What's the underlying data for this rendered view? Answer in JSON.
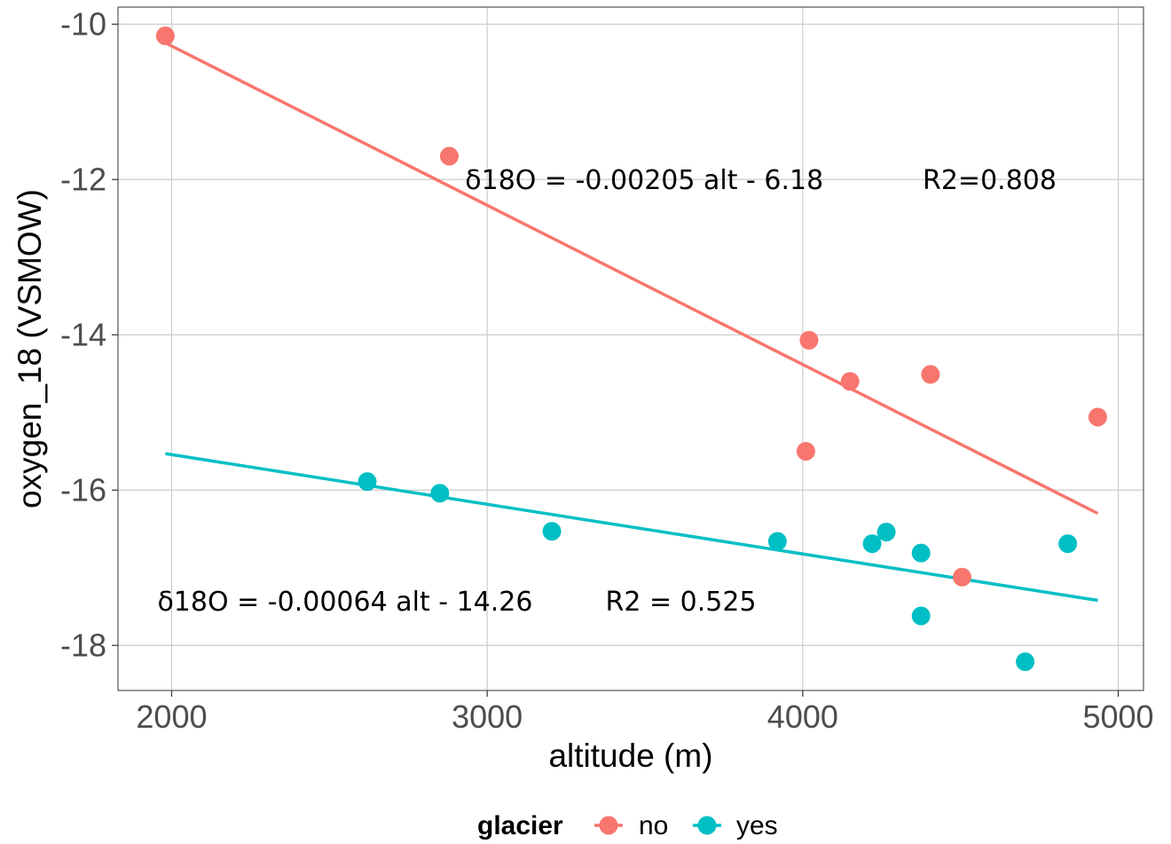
{
  "chart_data": {
    "type": "scatter",
    "xlabel": "altitude (m)",
    "ylabel": "oxygen_18 (VSMOW)",
    "xlim": [
      1830,
      5080
    ],
    "ylim": [
      -18.58,
      -9.78
    ],
    "x_ticks": [
      2000,
      3000,
      4000,
      5000
    ],
    "x_tick_labels": [
      "2000",
      "3000",
      "4000",
      "5000"
    ],
    "y_ticks": [
      -18,
      -16,
      -14,
      -12,
      -10
    ],
    "y_tick_labels": [
      "-18",
      "-16",
      "-14",
      "-12",
      "-10"
    ],
    "grid": true,
    "legend": {
      "title": "glacier",
      "position": "bottom"
    },
    "series": [
      {
        "name": "no",
        "color": "#f8766d",
        "points": [
          {
            "x": 1980,
            "y": -10.15
          },
          {
            "x": 2880,
            "y": -11.7
          },
          {
            "x": 4020,
            "y": -14.07
          },
          {
            "x": 4150,
            "y": -14.6
          },
          {
            "x": 4405,
            "y": -14.51
          },
          {
            "x": 4010,
            "y": -15.5
          },
          {
            "x": 4935,
            "y": -15.06
          },
          {
            "x": 4505,
            "y": -17.12
          }
        ],
        "fit": {
          "x": [
            1980,
            4935
          ],
          "y": [
            -10.24,
            -16.3
          ]
        }
      },
      {
        "name": "yes",
        "color": "#00bfc4",
        "points": [
          {
            "x": 2620,
            "y": -15.89
          },
          {
            "x": 2850,
            "y": -16.04
          },
          {
            "x": 3205,
            "y": -16.53
          },
          {
            "x": 3920,
            "y": -16.66
          },
          {
            "x": 4220,
            "y": -16.69
          },
          {
            "x": 4265,
            "y": -16.54
          },
          {
            "x": 4375,
            "y": -16.81
          },
          {
            "x": 4375,
            "y": -17.62
          },
          {
            "x": 4705,
            "y": -18.21
          },
          {
            "x": 4840,
            "y": -16.69
          }
        ],
        "fit": {
          "x": [
            1980,
            4935
          ],
          "y": [
            -15.53,
            -17.42
          ]
        }
      }
    ],
    "annotations": [
      {
        "text": "δ18O = -0.00205 alt - 6.18",
        "x": 2930,
        "y": -12.12
      },
      {
        "text": "R2=0.808",
        "x": 4380,
        "y": -12.12
      },
      {
        "text": "δ18O = -0.00064 alt - 14.26",
        "x": 1955,
        "y": -17.55
      },
      {
        "text": "R2 = 0.525",
        "x": 3375,
        "y": -17.55
      }
    ]
  }
}
